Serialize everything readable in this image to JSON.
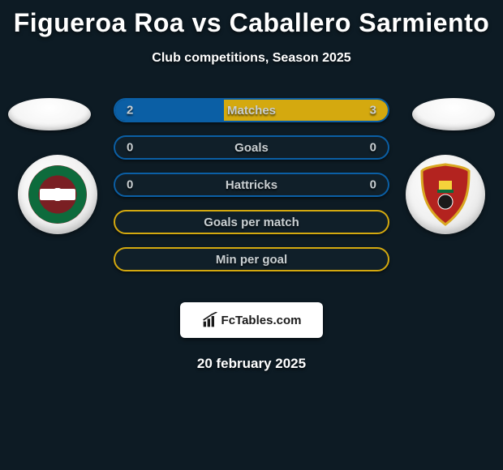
{
  "title": "Figueroa Roa vs Caballero Sarmiento",
  "subtitle": "Club competitions, Season 2025",
  "footer_date": "20 february 2025",
  "brand": "FcTables.com",
  "colors": {
    "background": "#0d1b24",
    "bar_border_blue": "#0b5fa5",
    "bar_border_yellow": "#d4a90f",
    "fill_blue": "#0b5fa5",
    "fill_yellow": "#d4a90f",
    "text": "#c9cfd2"
  },
  "bars": [
    {
      "label": "Matches",
      "left": "2",
      "right": "3",
      "left_pct": 40,
      "right_pct": 60,
      "border": "#0b5fa5"
    },
    {
      "label": "Goals",
      "left": "0",
      "right": "0",
      "left_pct": 0,
      "right_pct": 0,
      "border": "#0b5fa5"
    },
    {
      "label": "Hattricks",
      "left": "0",
      "right": "0",
      "left_pct": 0,
      "right_pct": 0,
      "border": "#0b5fa5"
    },
    {
      "label": "Goals per match",
      "left": "",
      "right": "",
      "left_pct": 0,
      "right_pct": 0,
      "border": "#d4a90f"
    },
    {
      "label": "Min per goal",
      "left": "",
      "right": "",
      "left_pct": 0,
      "right_pct": 0,
      "border": "#d4a90f"
    }
  ]
}
